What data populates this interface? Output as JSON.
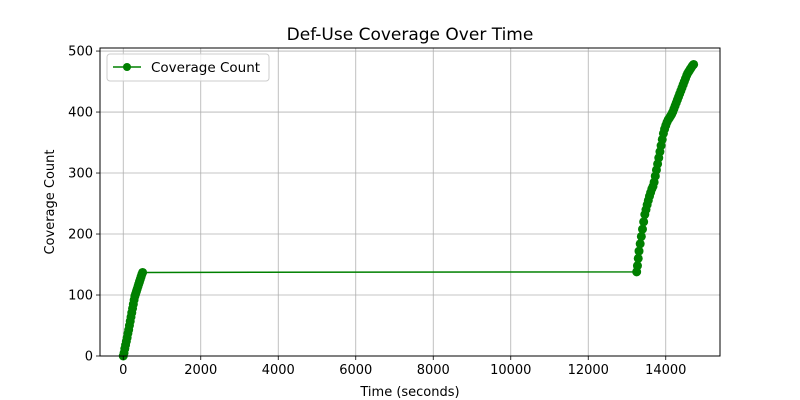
{
  "chart_data": {
    "type": "line",
    "title": "Def-Use Coverage Over Time",
    "xlabel": "Time (seconds)",
    "ylabel": "Coverage Count",
    "xlim": [
      -600,
      15400
    ],
    "ylim": [
      0,
      505
    ],
    "x_ticks": [
      0,
      2000,
      4000,
      6000,
      8000,
      10000,
      12000,
      14000
    ],
    "y_ticks": [
      0,
      100,
      200,
      300,
      400,
      500
    ],
    "grid": true,
    "legend_position": "top-left",
    "series": [
      {
        "name": "Coverage Count",
        "color": "#008000",
        "marker": "circle",
        "x": [
          0,
          20,
          40,
          60,
          80,
          100,
          120,
          140,
          160,
          180,
          200,
          220,
          240,
          260,
          280,
          300,
          320,
          340,
          360,
          380,
          400,
          420,
          440,
          460,
          480,
          500,
          13250,
          13270,
          13290,
          13310,
          13340,
          13370,
          13400,
          13430,
          13460,
          13490,
          13520,
          13550,
          13580,
          13610,
          13640,
          13670,
          13700,
          13730,
          13760,
          13790,
          13820,
          13850,
          13880,
          13910,
          13940,
          13970,
          14000,
          14030,
          14060,
          14090,
          14120,
          14150,
          14180,
          14210,
          14240,
          14270,
          14300,
          14330,
          14360,
          14390,
          14420,
          14450,
          14480,
          14510,
          14540,
          14570,
          14600,
          14630,
          14660,
          14690,
          14720
        ],
        "y": [
          0,
          5,
          12,
          18,
          24,
          30,
          37,
          43,
          50,
          57,
          64,
          71,
          78,
          85,
          92,
          98,
          102,
          106,
          110,
          114,
          118,
          122,
          126,
          130,
          134,
          137,
          138,
          148,
          160,
          172,
          184,
          196,
          208,
          220,
          232,
          240,
          248,
          255,
          262,
          268,
          274,
          278,
          285,
          295,
          305,
          315,
          325,
          335,
          345,
          355,
          365,
          372,
          378,
          383,
          387,
          390,
          393,
          396,
          400,
          405,
          410,
          415,
          420,
          425,
          430,
          435,
          440,
          445,
          450,
          455,
          460,
          464,
          467,
          470,
          473,
          476,
          478
        ]
      }
    ]
  }
}
